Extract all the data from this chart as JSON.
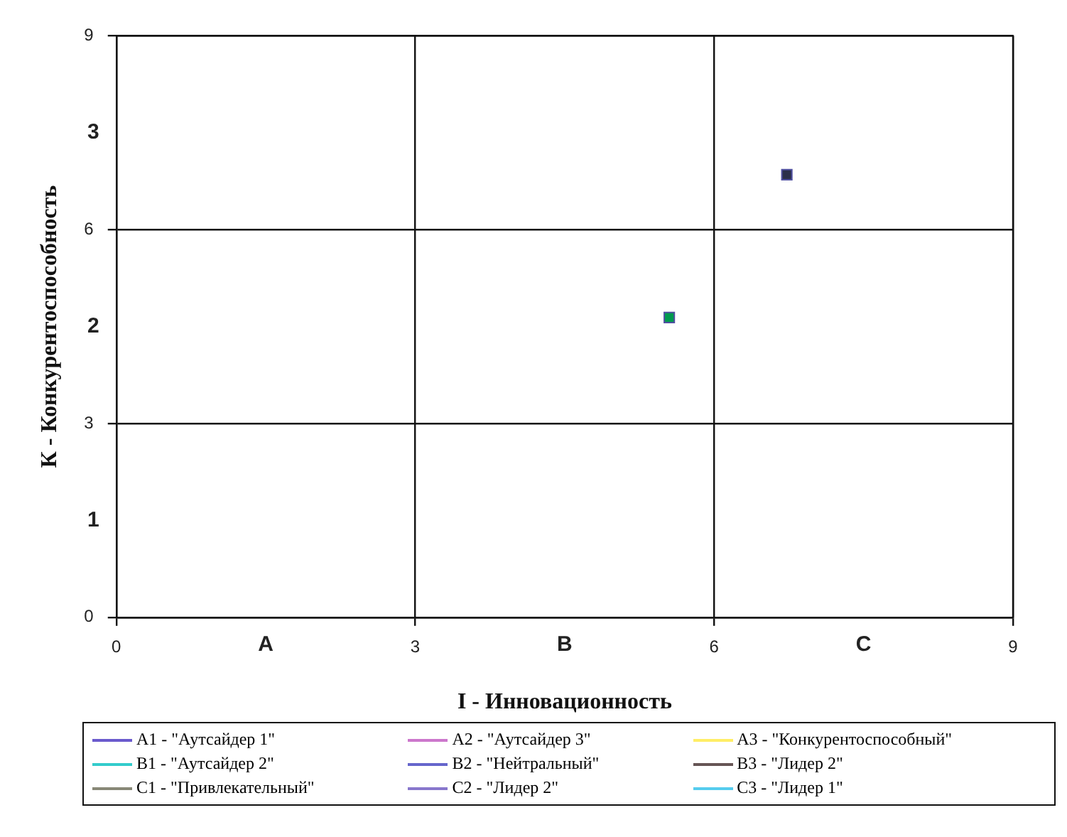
{
  "chart_data": {
    "type": "scatter",
    "xlabel": "I - Инновационность",
    "ylabel": "К - Конкурентоспособность",
    "xlim": [
      0,
      9
    ],
    "ylim": [
      0,
      9
    ],
    "xticks": [
      0,
      3,
      6,
      9
    ],
    "yticks": [
      0,
      3,
      6,
      9
    ],
    "annotations": [
      "A",
      "B",
      "C",
      "1",
      "2",
      "3"
    ],
    "grid": true,
    "legend": "bottom",
    "marker": "square",
    "series": [
      {
        "color": "#2b2f4a",
        "x": [
          6.73
        ],
        "values": [
          6.85
        ]
      },
      {
        "color": "#009a4e",
        "x": [
          5.55
        ],
        "values": [
          4.64
        ]
      },
      {
        "type": "line",
        "name": "A1 - \"Аутсайдер 1\"",
        "color": "#6a5acd"
      },
      {
        "type": "line",
        "name": "A2 - \"Аутсайдер 3\"",
        "color": "#cc77cc"
      },
      {
        "type": "line",
        "name": "A3 - \"Конкурентоспособный\"",
        "color": "#ffee66"
      },
      {
        "type": "line",
        "name": "B1 - \"Аутсайдер 2\"",
        "color": "#33cccc"
      },
      {
        "type": "line",
        "name": "B2 - \"Нейтральный\"",
        "color": "#6666cc"
      },
      {
        "type": "line",
        "name": "B3 - \"Лидер 2\"",
        "color": "#665555"
      },
      {
        "type": "line",
        "name": "C1 - \"Привлекательный\"",
        "color": "#888877"
      },
      {
        "type": "line",
        "name": "C2 - \"Лидер 2\"",
        "color": "#8877cc"
      },
      {
        "type": "line",
        "name": "C3 - \"Лидер 1\"",
        "color": "#55ccee"
      }
    ]
  }
}
